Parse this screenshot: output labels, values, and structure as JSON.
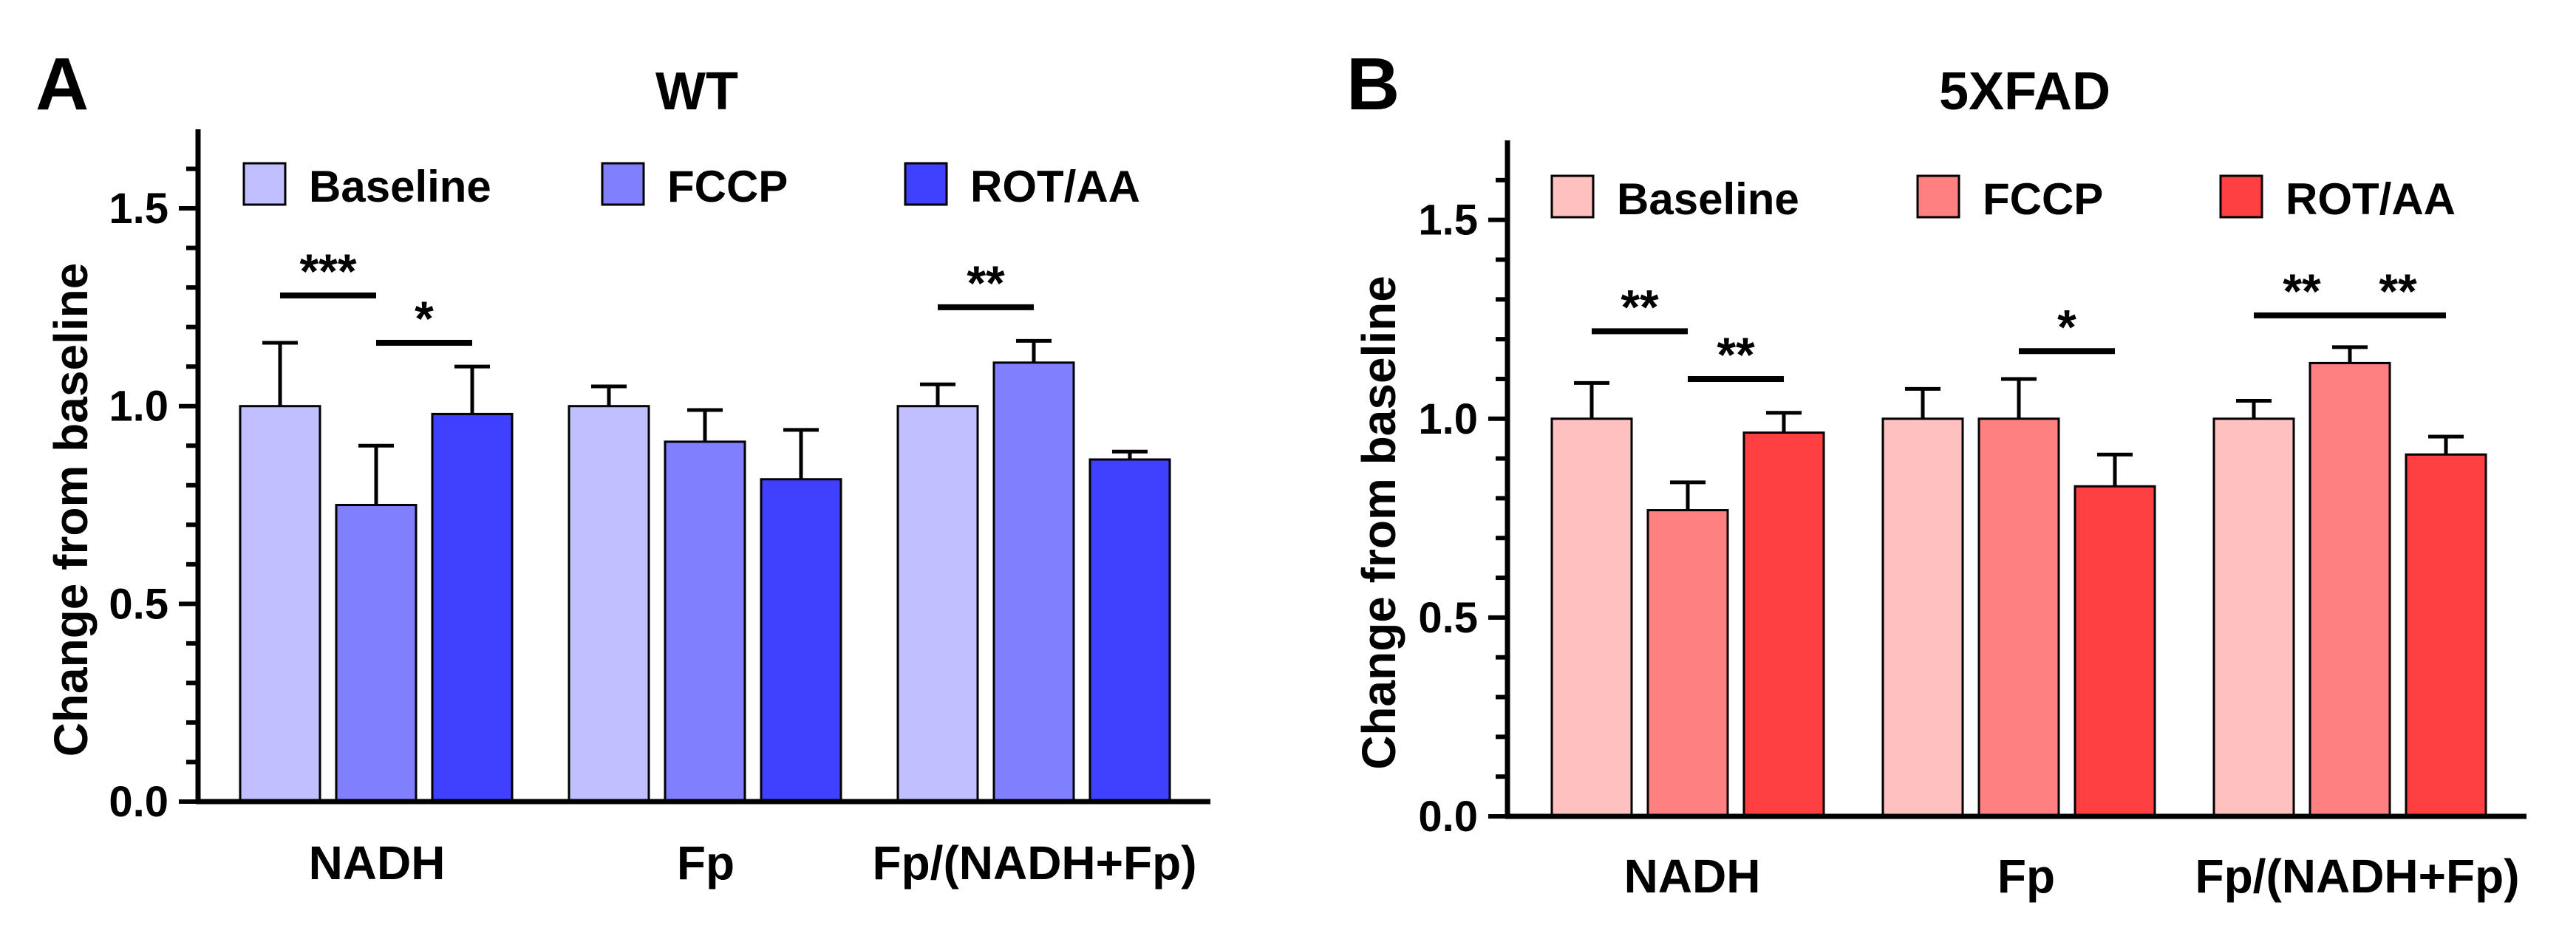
{
  "chart_data": [
    {
      "type": "bar",
      "panel_label": "A",
      "title": "WT",
      "xlabel": "",
      "ylabel": "Change from baseline",
      "ylim": [
        0,
        1.7
      ],
      "yticks": [
        "0.0",
        "0.5",
        "1.0",
        "1.5"
      ],
      "categories": [
        "NADH",
        "Fp",
        "Fp/(NADH+Fp)"
      ],
      "legend_position": "top",
      "series": [
        {
          "name": "Baseline",
          "color": "#c0c0ff",
          "values": [
            1.0,
            1.0,
            1.0
          ],
          "errors": [
            0.16,
            0.05,
            0.055
          ]
        },
        {
          "name": "FCCP",
          "color": "#8080ff",
          "values": [
            0.75,
            0.91,
            1.11
          ],
          "errors": [
            0.15,
            0.08,
            0.055
          ]
        },
        {
          "name": "ROT/AA",
          "color": "#4040ff",
          "values": [
            0.98,
            0.815,
            0.865
          ],
          "errors": [
            0.12,
            0.125,
            0.02
          ]
        }
      ],
      "significance": [
        {
          "label": "***",
          "category": 0,
          "from": 0,
          "to": 1,
          "level": 1.28
        },
        {
          "label": "*",
          "category": 0,
          "from": 1,
          "to": 2,
          "level": 1.16
        },
        {
          "label": "**",
          "category": 2,
          "from": 0,
          "to": 1,
          "level": 1.25
        }
      ]
    },
    {
      "type": "bar",
      "panel_label": "B",
      "title": "5XFAD",
      "xlabel": "",
      "ylabel": "Change from baseline",
      "ylim": [
        0,
        1.7
      ],
      "yticks": [
        "0.0",
        "0.5",
        "1.0",
        "1.5"
      ],
      "categories": [
        "NADH",
        "Fp",
        "Fp/(NADH+Fp)"
      ],
      "legend_position": "top",
      "series": [
        {
          "name": "Baseline",
          "color": "#ffc0c0",
          "values": [
            1.0,
            1.0,
            1.0
          ],
          "errors": [
            0.09,
            0.075,
            0.045
          ]
        },
        {
          "name": "FCCP",
          "color": "#ff8080",
          "values": [
            0.77,
            1.0,
            1.14
          ],
          "errors": [
            0.07,
            0.1,
            0.04
          ]
        },
        {
          "name": "ROT/AA",
          "color": "#ff4040",
          "values": [
            0.965,
            0.83,
            0.91
          ],
          "errors": [
            0.05,
            0.08,
            0.045
          ]
        }
      ],
      "significance": [
        {
          "label": "**",
          "category": 0,
          "from": 0,
          "to": 1,
          "level": 1.22
        },
        {
          "label": "**",
          "category": 0,
          "from": 1,
          "to": 2,
          "level": 1.1
        },
        {
          "label": "*",
          "category": 1,
          "from": 1,
          "to": 2,
          "level": 1.17
        },
        {
          "label": "**",
          "category": 2,
          "from": 0,
          "to": 1,
          "level": 1.26
        },
        {
          "label": "**",
          "category": 2,
          "from": 1,
          "to": 2,
          "level": 1.26
        }
      ]
    }
  ]
}
